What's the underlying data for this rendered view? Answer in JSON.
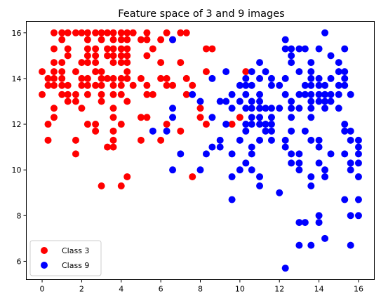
{
  "chart_data": {
    "type": "scatter",
    "title": "Feature space of 3 and 9 images",
    "xlabel": "",
    "ylabel": "",
    "xlim": [
      -0.8,
      16.8
    ],
    "ylim": [
      5.2,
      16.5
    ],
    "x_ticks": [
      0,
      2,
      4,
      6,
      8,
      10,
      12,
      14,
      16
    ],
    "y_ticks": [
      6,
      8,
      10,
      12,
      14,
      16
    ],
    "grid": false,
    "legend_position": "lower-left",
    "series": [
      {
        "name": "Class 3",
        "color": "#ff0000",
        "points": [
          [
            0.6,
            16
          ],
          [
            1,
            16
          ],
          [
            1.3,
            16
          ],
          [
            1.7,
            16
          ],
          [
            2,
            16
          ],
          [
            2.3,
            16
          ],
          [
            2.7,
            16
          ],
          [
            3,
            16
          ],
          [
            3.3,
            16
          ],
          [
            3.6,
            16
          ],
          [
            4,
            16
          ],
          [
            4.3,
            16
          ],
          [
            4.6,
            16
          ],
          [
            5.3,
            16
          ],
          [
            6.3,
            16
          ],
          [
            7,
            16
          ],
          [
            7.3,
            16
          ],
          [
            1,
            15.7
          ],
          [
            2.3,
            15.7
          ],
          [
            3,
            15.7
          ],
          [
            3.6,
            15.7
          ],
          [
            4,
            15.7
          ],
          [
            4.3,
            15.7
          ],
          [
            5,
            15.7
          ],
          [
            5.3,
            15.7
          ],
          [
            6,
            15.7
          ],
          [
            6.6,
            15.7
          ],
          [
            0.6,
            15.3
          ],
          [
            1.3,
            15.3
          ],
          [
            2.3,
            15.3
          ],
          [
            2.7,
            15.3
          ],
          [
            3.3,
            15.3
          ],
          [
            3.6,
            15.3
          ],
          [
            4,
            15.3
          ],
          [
            4.3,
            15.3
          ],
          [
            5.6,
            15.3
          ],
          [
            8.3,
            15.3
          ],
          [
            8.6,
            15.3
          ],
          [
            1.3,
            15
          ],
          [
            2.3,
            15
          ],
          [
            2.7,
            15
          ],
          [
            3.3,
            15
          ],
          [
            3.6,
            15
          ],
          [
            4,
            15
          ],
          [
            4.3,
            15
          ],
          [
            5.3,
            15
          ],
          [
            0.6,
            14.7
          ],
          [
            1,
            14.7
          ],
          [
            2,
            14.7
          ],
          [
            2.3,
            14.7
          ],
          [
            2.7,
            14.7
          ],
          [
            3.6,
            14.7
          ],
          [
            4,
            14.7
          ],
          [
            4.3,
            14.7
          ],
          [
            6,
            14.7
          ],
          [
            7,
            14.7
          ],
          [
            0,
            14.3
          ],
          [
            0.6,
            14.3
          ],
          [
            1,
            14.3
          ],
          [
            1.7,
            14.3
          ],
          [
            2.7,
            14.3
          ],
          [
            3,
            14.3
          ],
          [
            4.3,
            14.3
          ],
          [
            8.3,
            14.3
          ],
          [
            10.3,
            14.3
          ],
          [
            0.3,
            14
          ],
          [
            0.6,
            14
          ],
          [
            1,
            14
          ],
          [
            2,
            14
          ],
          [
            2.3,
            14
          ],
          [
            3,
            14
          ],
          [
            3.3,
            14
          ],
          [
            3.6,
            14
          ],
          [
            4,
            14
          ],
          [
            4.3,
            14
          ],
          [
            5,
            14
          ],
          [
            6,
            14
          ],
          [
            6.3,
            14
          ],
          [
            7.3,
            14
          ],
          [
            0.3,
            13.7
          ],
          [
            0.6,
            13.7
          ],
          [
            1,
            13.7
          ],
          [
            1.3,
            13.7
          ],
          [
            2,
            13.7
          ],
          [
            2.3,
            13.7
          ],
          [
            2.7,
            13.7
          ],
          [
            3,
            13.7
          ],
          [
            3.6,
            13.7
          ],
          [
            4,
            13.7
          ],
          [
            4.6,
            13.7
          ],
          [
            5.3,
            13.7
          ],
          [
            6.3,
            13.7
          ],
          [
            6.6,
            13.7
          ],
          [
            7.6,
            13.7
          ],
          [
            0,
            13.3
          ],
          [
            1,
            13.3
          ],
          [
            1.3,
            13.3
          ],
          [
            1.7,
            13.3
          ],
          [
            2.3,
            13.3
          ],
          [
            3,
            13.3
          ],
          [
            3.6,
            13.3
          ],
          [
            4,
            13.3
          ],
          [
            5.3,
            13.3
          ],
          [
            5.6,
            13.3
          ],
          [
            7.3,
            13.3
          ],
          [
            1.3,
            13
          ],
          [
            1.7,
            13
          ],
          [
            3,
            13
          ],
          [
            4.3,
            13
          ],
          [
            0.6,
            12.7
          ],
          [
            2,
            12.7
          ],
          [
            3.6,
            12.7
          ],
          [
            8,
            12.7
          ],
          [
            0.6,
            12.3
          ],
          [
            3.6,
            12.3
          ],
          [
            5,
            12.3
          ],
          [
            5.3,
            12.3
          ],
          [
            8,
            12.3
          ],
          [
            10,
            12.3
          ],
          [
            0.3,
            12
          ],
          [
            2.3,
            12
          ],
          [
            2.7,
            12
          ],
          [
            4,
            12
          ],
          [
            6.3,
            12
          ],
          [
            8.3,
            12
          ],
          [
            9.6,
            12
          ],
          [
            2.7,
            11.7
          ],
          [
            3.6,
            11.7
          ],
          [
            7,
            11.7
          ],
          [
            0.3,
            11.3
          ],
          [
            1.7,
            11.3
          ],
          [
            3.6,
            11.3
          ],
          [
            5,
            11.3
          ],
          [
            6,
            11.3
          ],
          [
            3.3,
            11
          ],
          [
            3.6,
            11
          ],
          [
            1.7,
            10.7
          ],
          [
            4.3,
            9.7
          ],
          [
            7.6,
            9.7
          ],
          [
            3,
            9.3
          ],
          [
            4,
            9.3
          ]
        ]
      },
      {
        "name": "Class 9",
        "color": "#0000ff",
        "points": [
          [
            14.3,
            16
          ],
          [
            6.6,
            15.7
          ],
          [
            12.3,
            15.7
          ],
          [
            12.3,
            15.3
          ],
          [
            12.6,
            15.3
          ],
          [
            13,
            15.3
          ],
          [
            13.3,
            15.3
          ],
          [
            14,
            15.3
          ],
          [
            15.3,
            15.3
          ],
          [
            12.6,
            15
          ],
          [
            14.6,
            15
          ],
          [
            11,
            14.7
          ],
          [
            12.6,
            14.7
          ],
          [
            13.6,
            14.7
          ],
          [
            15,
            14.7
          ],
          [
            9.3,
            14.3
          ],
          [
            10.6,
            14.3
          ],
          [
            11.3,
            14.3
          ],
          [
            13,
            14.3
          ],
          [
            13.6,
            14.3
          ],
          [
            15,
            14.3
          ],
          [
            15.3,
            14.3
          ],
          [
            8.6,
            14
          ],
          [
            10.3,
            14
          ],
          [
            11,
            14
          ],
          [
            11.6,
            14
          ],
          [
            12.3,
            14
          ],
          [
            13.6,
            14
          ],
          [
            14,
            14
          ],
          [
            14.6,
            14
          ],
          [
            15.3,
            14
          ],
          [
            10,
            13.7
          ],
          [
            10.3,
            13.7
          ],
          [
            10.6,
            13.7
          ],
          [
            11.6,
            13.7
          ],
          [
            12,
            13.7
          ],
          [
            13.3,
            13.7
          ],
          [
            13.6,
            13.7
          ],
          [
            14,
            13.7
          ],
          [
            14.3,
            13.7
          ],
          [
            15,
            13.7
          ],
          [
            15.3,
            13.7
          ],
          [
            7.6,
            13.3
          ],
          [
            9.6,
            13.3
          ],
          [
            10.3,
            13.3
          ],
          [
            11,
            13.3
          ],
          [
            12.3,
            13.3
          ],
          [
            13,
            13.3
          ],
          [
            13.3,
            13.3
          ],
          [
            13.6,
            13.3
          ],
          [
            14,
            13.3
          ],
          [
            14.3,
            13.3
          ],
          [
            14.6,
            13.3
          ],
          [
            15,
            13.3
          ],
          [
            15.6,
            13.3
          ],
          [
            8,
            13
          ],
          [
            9,
            13
          ],
          [
            9.3,
            13
          ],
          [
            10,
            13
          ],
          [
            10.6,
            13
          ],
          [
            11,
            13
          ],
          [
            12.6,
            13
          ],
          [
            13.6,
            13
          ],
          [
            14,
            13
          ],
          [
            14.3,
            13
          ],
          [
            14.6,
            13
          ],
          [
            6.6,
            12.7
          ],
          [
            9.6,
            12.7
          ],
          [
            10.3,
            12.7
          ],
          [
            10.6,
            12.7
          ],
          [
            11,
            12.7
          ],
          [
            11.3,
            12.7
          ],
          [
            11.6,
            12.7
          ],
          [
            12,
            12.7
          ],
          [
            12.6,
            12.7
          ],
          [
            13,
            12.7
          ],
          [
            13.6,
            12.7
          ],
          [
            14.3,
            12.7
          ],
          [
            15,
            12.7
          ],
          [
            6.6,
            12.3
          ],
          [
            8.6,
            12.3
          ],
          [
            10.6,
            12.3
          ],
          [
            11,
            12.3
          ],
          [
            11.6,
            12.3
          ],
          [
            12.6,
            12.3
          ],
          [
            13.6,
            12.3
          ],
          [
            9.3,
            12
          ],
          [
            10.3,
            12
          ],
          [
            10.6,
            12
          ],
          [
            11,
            12
          ],
          [
            11.3,
            12
          ],
          [
            11.6,
            12
          ],
          [
            15.3,
            12
          ],
          [
            5.6,
            11.7
          ],
          [
            6.3,
            11.7
          ],
          [
            10.3,
            11.7
          ],
          [
            11.3,
            11.7
          ],
          [
            11.6,
            11.7
          ],
          [
            12.6,
            11.7
          ],
          [
            13.3,
            11.7
          ],
          [
            15.3,
            11.7
          ],
          [
            15.6,
            11.7
          ],
          [
            9,
            11.3
          ],
          [
            10,
            11.3
          ],
          [
            11,
            11.3
          ],
          [
            11.6,
            11.3
          ],
          [
            12.3,
            11.3
          ],
          [
            13.6,
            11.3
          ],
          [
            14,
            11.3
          ],
          [
            15.6,
            11.3
          ],
          [
            16,
            11.3
          ],
          [
            8.6,
            11
          ],
          [
            9,
            11
          ],
          [
            10.6,
            11
          ],
          [
            12.3,
            11
          ],
          [
            14,
            11
          ],
          [
            16,
            11
          ],
          [
            7,
            10.7
          ],
          [
            8.3,
            10.7
          ],
          [
            9.6,
            10.7
          ],
          [
            10.6,
            10.7
          ],
          [
            12.6,
            10.7
          ],
          [
            13,
            10.7
          ],
          [
            14.6,
            10.7
          ],
          [
            15.3,
            10.7
          ],
          [
            16,
            10.7
          ],
          [
            10.3,
            10.3
          ],
          [
            12.6,
            10.3
          ],
          [
            13,
            10.3
          ],
          [
            14,
            10.3
          ],
          [
            15.6,
            10.3
          ],
          [
            16,
            10.3
          ],
          [
            6.6,
            10
          ],
          [
            8,
            10
          ],
          [
            10,
            10
          ],
          [
            10.6,
            10
          ],
          [
            13,
            10
          ],
          [
            14.3,
            10
          ],
          [
            15.6,
            10
          ],
          [
            9.6,
            9.7
          ],
          [
            11,
            9.7
          ],
          [
            13.6,
            9.7
          ],
          [
            14.3,
            9.7
          ],
          [
            16,
            9.7
          ],
          [
            11,
            9.3
          ],
          [
            13.6,
            9.3
          ],
          [
            12,
            9
          ],
          [
            9.6,
            8.7
          ],
          [
            15.3,
            8.7
          ],
          [
            16,
            8.7
          ],
          [
            14,
            8
          ],
          [
            15.6,
            8
          ],
          [
            16,
            8
          ],
          [
            13,
            7.7
          ],
          [
            13.3,
            7.7
          ],
          [
            14,
            7.7
          ],
          [
            14.3,
            7
          ],
          [
            13,
            6.7
          ],
          [
            13.6,
            6.7
          ],
          [
            15.6,
            6.7
          ],
          [
            12.3,
            5.7
          ]
        ]
      }
    ]
  }
}
